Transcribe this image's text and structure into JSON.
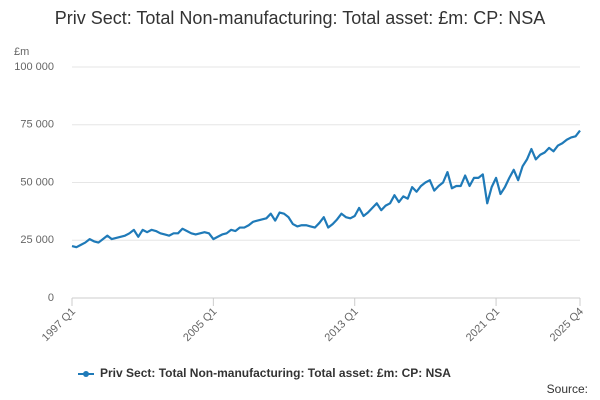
{
  "chart_data": {
    "type": "line",
    "title": "Priv Sect: Total Non-manufacturing: Total asset: £m: CP: NSA",
    "y_unit": "£m",
    "source": "Source:",
    "categories": [
      "1997 Q1",
      null,
      null,
      null,
      null,
      null,
      null,
      null,
      null,
      null,
      null,
      null,
      null,
      null,
      null,
      null,
      null,
      null,
      null,
      null,
      null,
      null,
      null,
      null,
      null,
      null,
      null,
      null,
      null,
      null,
      null,
      null,
      "2005 Q1",
      null,
      null,
      null,
      null,
      null,
      null,
      null,
      null,
      null,
      null,
      null,
      null,
      null,
      null,
      null,
      null,
      null,
      null,
      null,
      null,
      null,
      null,
      null,
      null,
      null,
      null,
      null,
      null,
      null,
      null,
      null,
      "2013 Q1",
      null,
      null,
      null,
      null,
      null,
      null,
      null,
      null,
      null,
      null,
      null,
      null,
      null,
      null,
      null,
      null,
      null,
      null,
      null,
      null,
      null,
      null,
      null,
      null,
      null,
      null,
      null,
      null,
      null,
      null,
      null,
      "2021 Q1",
      null,
      null,
      null,
      null,
      null,
      null,
      null,
      null,
      null,
      null,
      null,
      null,
      null,
      null,
      null,
      null,
      null,
      null,
      "2025 Q4"
    ],
    "series": [
      {
        "name": "Priv Sect: Total Non-manufacturing: Total asset: £m: CP: NSA",
        "color": "#1f7ab8",
        "values": [
          22500,
          22000,
          23000,
          24000,
          25500,
          24500,
          24000,
          25500,
          27000,
          25500,
          26000,
          26500,
          27000,
          28000,
          29500,
          26500,
          29500,
          28500,
          29500,
          29000,
          28000,
          27500,
          27000,
          28000,
          28000,
          30000,
          29000,
          28000,
          27500,
          28000,
          28500,
          28000,
          25500,
          26500,
          27500,
          28000,
          29500,
          29000,
          30500,
          30500,
          31500,
          33000,
          33500,
          34000,
          34500,
          36500,
          33500,
          37000,
          36500,
          35000,
          32000,
          31000,
          31500,
          31500,
          31000,
          30500,
          32500,
          35000,
          30500,
          32000,
          34000,
          36500,
          35000,
          34500,
          35500,
          39000,
          35500,
          37000,
          39000,
          41000,
          38000,
          40000,
          41000,
          44500,
          41500,
          44000,
          43000,
          48000,
          46000,
          48500,
          50000,
          51000,
          46500,
          48500,
          50000,
          54500,
          47500,
          48500,
          48500,
          53000,
          48500,
          52000,
          52000,
          53500,
          41000,
          48000,
          52000,
          45000,
          48000,
          52000,
          55500,
          51000,
          57000,
          60000,
          64500,
          60000,
          62000,
          63000,
          65000,
          63500,
          66000,
          67000,
          68500,
          69500,
          70000,
          72500
        ]
      }
    ],
    "ylim": [
      0,
      100000
    ],
    "yticks": [
      0,
      {
        "value": 25000,
        "label": "25 000"
      },
      {
        "value": 50000,
        "label": "50 000"
      },
      {
        "value": 75000,
        "label": "75 000"
      },
      {
        "value": 100000,
        "label": "100 000"
      }
    ],
    "grid": true,
    "legend": "bottom"
  }
}
